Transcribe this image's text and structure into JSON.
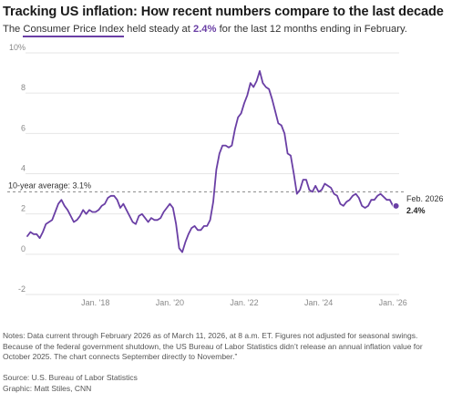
{
  "header": {
    "title": "Tracking US inflation: How recent numbers compare to the last decade",
    "subtitle_prefix": "The ",
    "subtitle_highlight": "Consumer Price Index",
    "subtitle_middle": " held steady at ",
    "subtitle_value": "2.4%",
    "subtitle_suffix": " for the last 12 months ending in February."
  },
  "colors": {
    "line": "#6a3fa5",
    "average_line": "#888888",
    "grid": "#e6e6e6"
  },
  "chart_data": {
    "type": "line",
    "title": "",
    "xlabel": "",
    "ylabel": "",
    "ylim": [
      -2,
      10
    ],
    "xlim": [
      "2016-03",
      "2026-03"
    ],
    "y_ticks": [
      -2,
      0,
      2,
      4,
      6,
      8,
      10
    ],
    "y_tick_labels": [
      "-2",
      "0",
      "2",
      "4",
      "6",
      "8",
      "10%"
    ],
    "x_ticks": [
      {
        "date": "2018-01",
        "label": "Jan. '18"
      },
      {
        "date": "2020-01",
        "label": "Jan. '20"
      },
      {
        "date": "2022-01",
        "label": "Jan. '22"
      },
      {
        "date": "2024-01",
        "label": "Jan. '24"
      },
      {
        "date": "2026-01",
        "label": "Jan. '26"
      }
    ],
    "grid": true,
    "reference_line": {
      "value": 3.1,
      "label": "10-year average: 3.1%"
    },
    "end_label": {
      "date": "Feb. 2026",
      "value_label": "2.4%"
    },
    "series": [
      {
        "points": [
          [
            "2016-03",
            0.9
          ],
          [
            "2016-04",
            1.1
          ],
          [
            "2016-05",
            1.0
          ],
          [
            "2016-06",
            1.0
          ],
          [
            "2016-07",
            0.8
          ],
          [
            "2016-08",
            1.1
          ],
          [
            "2016-09",
            1.5
          ],
          [
            "2016-10",
            1.6
          ],
          [
            "2016-11",
            1.7
          ],
          [
            "2016-12",
            2.1
          ],
          [
            "2017-01",
            2.5
          ],
          [
            "2017-02",
            2.7
          ],
          [
            "2017-03",
            2.4
          ],
          [
            "2017-04",
            2.2
          ],
          [
            "2017-05",
            1.9
          ],
          [
            "2017-06",
            1.6
          ],
          [
            "2017-07",
            1.7
          ],
          [
            "2017-08",
            1.9
          ],
          [
            "2017-09",
            2.2
          ],
          [
            "2017-10",
            2.0
          ],
          [
            "2017-11",
            2.2
          ],
          [
            "2017-12",
            2.1
          ],
          [
            "2018-01",
            2.1
          ],
          [
            "2018-02",
            2.2
          ],
          [
            "2018-03",
            2.4
          ],
          [
            "2018-04",
            2.5
          ],
          [
            "2018-05",
            2.8
          ],
          [
            "2018-06",
            2.9
          ],
          [
            "2018-07",
            2.9
          ],
          [
            "2018-08",
            2.7
          ],
          [
            "2018-09",
            2.3
          ],
          [
            "2018-10",
            2.5
          ],
          [
            "2018-11",
            2.2
          ],
          [
            "2018-12",
            1.9
          ],
          [
            "2019-01",
            1.6
          ],
          [
            "2019-02",
            1.5
          ],
          [
            "2019-03",
            1.9
          ],
          [
            "2019-04",
            2.0
          ],
          [
            "2019-05",
            1.8
          ],
          [
            "2019-06",
            1.6
          ],
          [
            "2019-07",
            1.8
          ],
          [
            "2019-08",
            1.7
          ],
          [
            "2019-09",
            1.7
          ],
          [
            "2019-10",
            1.8
          ],
          [
            "2019-11",
            2.1
          ],
          [
            "2019-12",
            2.3
          ],
          [
            "2020-01",
            2.5
          ],
          [
            "2020-02",
            2.3
          ],
          [
            "2020-03",
            1.5
          ],
          [
            "2020-04",
            0.3
          ],
          [
            "2020-05",
            0.1
          ],
          [
            "2020-06",
            0.6
          ],
          [
            "2020-07",
            1.0
          ],
          [
            "2020-08",
            1.3
          ],
          [
            "2020-09",
            1.4
          ],
          [
            "2020-10",
            1.2
          ],
          [
            "2020-11",
            1.2
          ],
          [
            "2020-12",
            1.4
          ],
          [
            "2021-01",
            1.4
          ],
          [
            "2021-02",
            1.7
          ],
          [
            "2021-03",
            2.6
          ],
          [
            "2021-04",
            4.2
          ],
          [
            "2021-05",
            5.0
          ],
          [
            "2021-06",
            5.4
          ],
          [
            "2021-07",
            5.4
          ],
          [
            "2021-08",
            5.3
          ],
          [
            "2021-09",
            5.4
          ],
          [
            "2021-10",
            6.2
          ],
          [
            "2021-11",
            6.8
          ],
          [
            "2021-12",
            7.0
          ],
          [
            "2022-01",
            7.5
          ],
          [
            "2022-02",
            7.9
          ],
          [
            "2022-03",
            8.5
          ],
          [
            "2022-04",
            8.3
          ],
          [
            "2022-05",
            8.6
          ],
          [
            "2022-06",
            9.1
          ],
          [
            "2022-07",
            8.5
          ],
          [
            "2022-08",
            8.3
          ],
          [
            "2022-09",
            8.2
          ],
          [
            "2022-10",
            7.7
          ],
          [
            "2022-11",
            7.1
          ],
          [
            "2022-12",
            6.5
          ],
          [
            "2023-01",
            6.4
          ],
          [
            "2023-02",
            6.0
          ],
          [
            "2023-03",
            5.0
          ],
          [
            "2023-04",
            4.9
          ],
          [
            "2023-05",
            4.0
          ],
          [
            "2023-06",
            3.0
          ],
          [
            "2023-07",
            3.2
          ],
          [
            "2023-08",
            3.7
          ],
          [
            "2023-09",
            3.7
          ],
          [
            "2023-10",
            3.2
          ],
          [
            "2023-11",
            3.1
          ],
          [
            "2023-12",
            3.4
          ],
          [
            "2024-01",
            3.1
          ],
          [
            "2024-02",
            3.2
          ],
          [
            "2024-03",
            3.5
          ],
          [
            "2024-04",
            3.4
          ],
          [
            "2024-05",
            3.3
          ],
          [
            "2024-06",
            3.0
          ],
          [
            "2024-07",
            2.9
          ],
          [
            "2024-08",
            2.5
          ],
          [
            "2024-09",
            2.4
          ],
          [
            "2024-10",
            2.6
          ],
          [
            "2024-11",
            2.7
          ],
          [
            "2024-12",
            2.9
          ],
          [
            "2025-01",
            3.0
          ],
          [
            "2025-02",
            2.8
          ],
          [
            "2025-03",
            2.4
          ],
          [
            "2025-04",
            2.3
          ],
          [
            "2025-05",
            2.4
          ],
          [
            "2025-06",
            2.7
          ],
          [
            "2025-07",
            2.7
          ],
          [
            "2025-08",
            2.9
          ],
          [
            "2025-09",
            3.0
          ],
          [
            "2025-11",
            2.7
          ],
          [
            "2025-12",
            2.7
          ],
          [
            "2026-01",
            2.4
          ],
          [
            "2026-02",
            2.4
          ]
        ]
      }
    ]
  },
  "footer": {
    "notes": "Notes: Data current through February 2026 as of March 11, 2026, at 8 a.m. ET. Figures not adjusted for seasonal swings. Because of the federal government shutdown, the US Bureau of Labor Statistics didn’t release an annual inflation value for October 2025. The chart connects September directly to November.”",
    "source": "Source: U.S. Bureau of Labor Statistics",
    "graphic": "Graphic: Matt Stiles, CNN"
  }
}
